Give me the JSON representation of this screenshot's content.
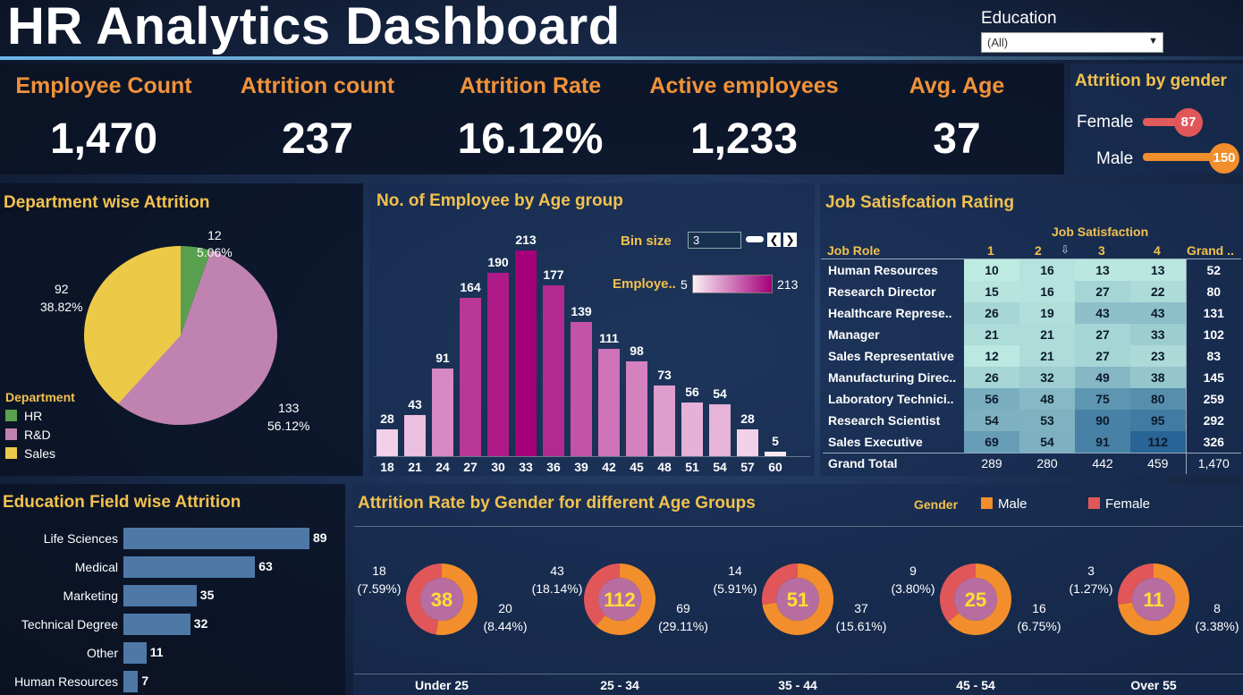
{
  "header": {
    "title": "HR Analytics Dashboard",
    "filter_label": "Education",
    "filter_value": "(All)"
  },
  "kpis": [
    {
      "label": "Employee Count",
      "value": "1,470"
    },
    {
      "label": "Attrition count",
      "value": "237"
    },
    {
      "label": "Attrition Rate",
      "value": "16.12%"
    },
    {
      "label": "Active employees",
      "value": "1,233"
    },
    {
      "label": "Avg. Age",
      "value": "37"
    }
  ],
  "gender": {
    "title": "Attrition by gender",
    "female_label": "Female",
    "female_value": "87",
    "male_label": "Male",
    "male_value": "150"
  },
  "department": {
    "title": "Department wise Attrition",
    "legend_title": "Department",
    "colors": {
      "HR": "#59a14f",
      "R&D": "#c083b1",
      "Sales": "#edc948"
    }
  },
  "age_group": {
    "title": "No. of Employee by Age group",
    "bin_label": "Bin size",
    "bin_value": "3",
    "legend_label": "Employe..",
    "legend_min": "5",
    "legend_max": "213"
  },
  "job_satisfaction": {
    "title": "Job Satisfcation Rating",
    "header_group": "Job Satisfaction",
    "col_role": "Job Role",
    "cols": [
      "1",
      "2",
      "3",
      "4",
      "Grand .."
    ],
    "rows": [
      {
        "role": "Human Resources",
        "v": [
          "10",
          "16",
          "13",
          "13"
        ],
        "total": "52"
      },
      {
        "role": "Research Director",
        "v": [
          "15",
          "16",
          "27",
          "22"
        ],
        "total": "80"
      },
      {
        "role": "Healthcare Represe..",
        "v": [
          "26",
          "19",
          "43",
          "43"
        ],
        "total": "131"
      },
      {
        "role": "Manager",
        "v": [
          "21",
          "21",
          "27",
          "33"
        ],
        "total": "102"
      },
      {
        "role": "Sales Representative",
        "v": [
          "12",
          "21",
          "27",
          "23"
        ],
        "total": "83"
      },
      {
        "role": "Manufacturing Direc..",
        "v": [
          "26",
          "32",
          "49",
          "38"
        ],
        "total": "145"
      },
      {
        "role": "Laboratory Technici..",
        "v": [
          "56",
          "48",
          "75",
          "80"
        ],
        "total": "259"
      },
      {
        "role": "Research Scientist",
        "v": [
          "54",
          "53",
          "90",
          "95"
        ],
        "total": "292"
      },
      {
        "role": "Sales Executive",
        "v": [
          "69",
          "54",
          "91",
          "112"
        ],
        "total": "326"
      }
    ],
    "grand_total": {
      "role": "Grand Total",
      "v": [
        "289",
        "280",
        "442",
        "459"
      ],
      "total": "1,470"
    }
  },
  "education_field": {
    "title": "Education Field wise Attrition"
  },
  "gender_age": {
    "title": "Attrition Rate by Gender for different Age Groups",
    "legend_title": "Gender",
    "legend_male": "Male",
    "legend_female": "Female",
    "male_color": "#f28e2b",
    "female_color": "#e15759"
  },
  "chart_data": [
    {
      "type": "pie",
      "title": "Department wise Attrition",
      "categories": [
        "HR",
        "R&D",
        "Sales"
      ],
      "values": [
        12,
        133,
        92
      ],
      "labels": [
        "12\n5.06%",
        "133\n56.12%",
        "92\n38.82%"
      ],
      "percents": [
        "5.06%",
        "56.12%",
        "38.82%"
      ]
    },
    {
      "type": "bar",
      "title": "No. of Employee by Age group",
      "categories": [
        "18",
        "21",
        "24",
        "27",
        "30",
        "33",
        "36",
        "39",
        "42",
        "45",
        "48",
        "51",
        "54",
        "57",
        "60"
      ],
      "values": [
        28,
        43,
        91,
        164,
        190,
        213,
        177,
        139,
        111,
        98,
        73,
        56,
        54,
        28,
        5
      ]
    },
    {
      "type": "bar",
      "title": "Education Field wise Attrition",
      "orientation": "horizontal",
      "categories": [
        "Life Sciences",
        "Medical",
        "Marketing",
        "Technical Degree",
        "Other",
        "Human Resources"
      ],
      "values": [
        89,
        63,
        35,
        32,
        11,
        7
      ]
    },
    {
      "type": "pie",
      "title": "Attrition Rate by Gender for different Age Groups",
      "categories": [
        "Under 25",
        "25 - 34",
        "35 - 44",
        "45 - 54",
        "Over 55"
      ],
      "totals": [
        38,
        112,
        51,
        25,
        11
      ],
      "series": [
        {
          "name": "Female",
          "values": [
            18,
            43,
            14,
            9,
            3
          ],
          "percents": [
            "(7.59%)",
            "(18.14%)",
            "(5.91%)",
            "(3.80%)",
            "(1.27%)"
          ]
        },
        {
          "name": "Male",
          "values": [
            20,
            69,
            37,
            16,
            8
          ],
          "percents": [
            "(8.44%)",
            "(29.11%)",
            "(15.61%)",
            "(6.75%)",
            "(3.38%)"
          ]
        }
      ]
    }
  ]
}
